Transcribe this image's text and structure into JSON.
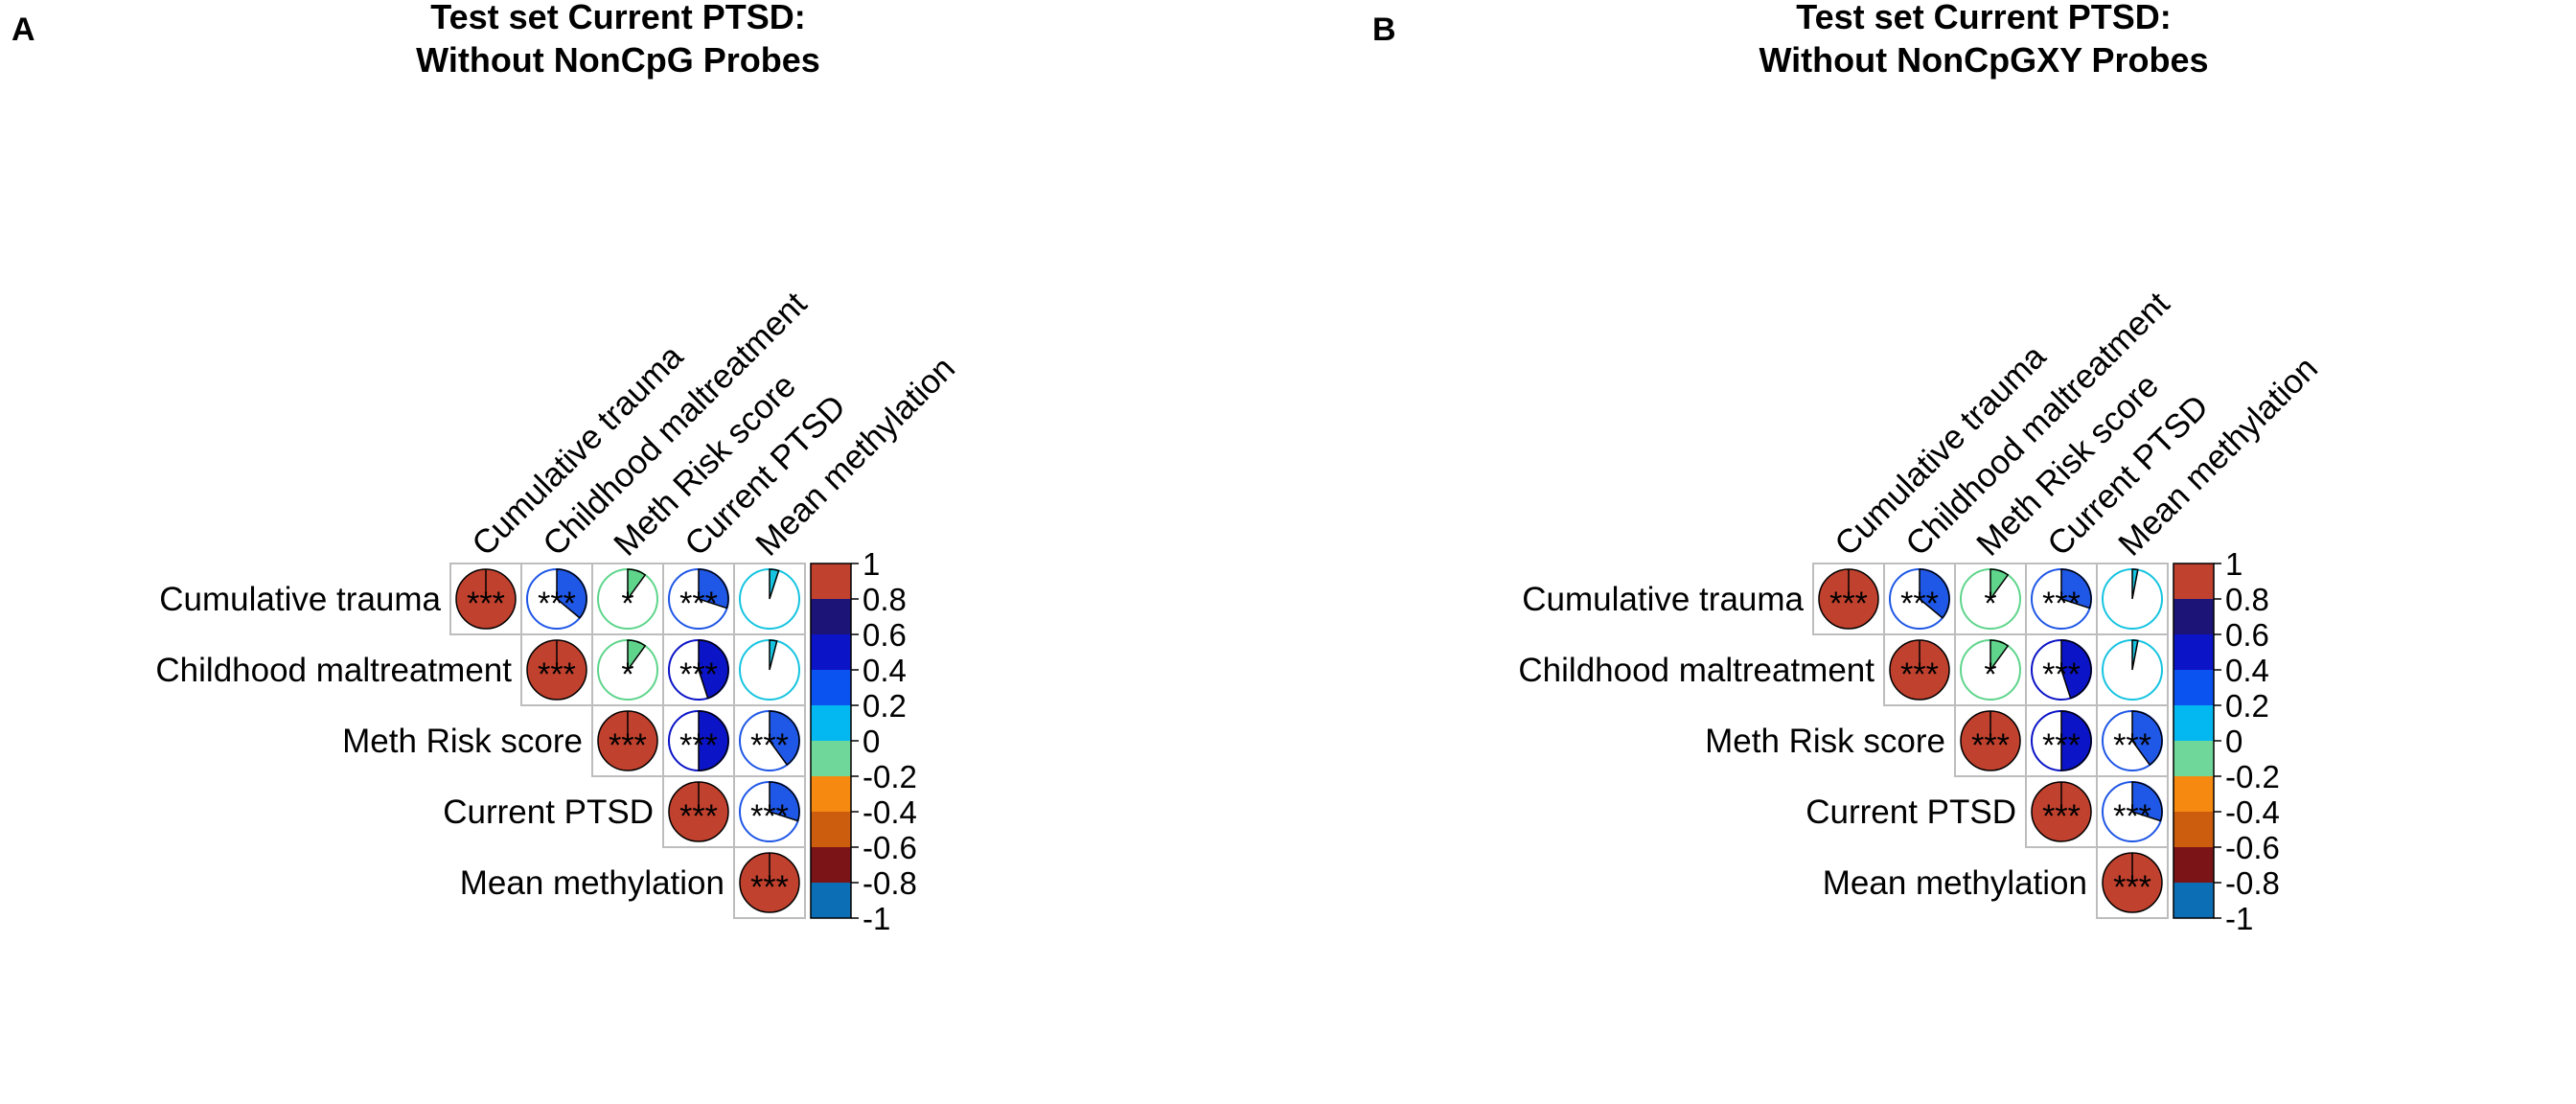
{
  "chart_data": [
    {
      "panel_label": "A",
      "type": "heatmap",
      "subtype": "correlation-pie-upper-triangle",
      "title_line1": "Test set Current PTSD:",
      "title_line2": "Without NonCpG Probes",
      "variables": [
        "Cumulative trauma",
        "Childhood maltreatment",
        "Meth Risk score",
        "Current PTSD",
        "Mean methylation"
      ],
      "cells": [
        {
          "row": 0,
          "col": 0,
          "r": 1.0,
          "sig": "***"
        },
        {
          "row": 0,
          "col": 1,
          "r": 0.36,
          "sig": "***"
        },
        {
          "row": 0,
          "col": 2,
          "r": 0.1,
          "sig": "*"
        },
        {
          "row": 0,
          "col": 3,
          "r": 0.3,
          "sig": "***"
        },
        {
          "row": 0,
          "col": 4,
          "r": 0.05,
          "sig": ""
        },
        {
          "row": 1,
          "col": 1,
          "r": 1.0,
          "sig": "***"
        },
        {
          "row": 1,
          "col": 2,
          "r": 0.1,
          "sig": "*"
        },
        {
          "row": 1,
          "col": 3,
          "r": 0.45,
          "sig": "***"
        },
        {
          "row": 1,
          "col": 4,
          "r": 0.04,
          "sig": ""
        },
        {
          "row": 2,
          "col": 2,
          "r": 1.0,
          "sig": "***"
        },
        {
          "row": 2,
          "col": 3,
          "r": 0.5,
          "sig": "***"
        },
        {
          "row": 2,
          "col": 4,
          "r": 0.4,
          "sig": "***"
        },
        {
          "row": 3,
          "col": 3,
          "r": 1.0,
          "sig": "***"
        },
        {
          "row": 3,
          "col": 4,
          "r": 0.3,
          "sig": "***"
        },
        {
          "row": 4,
          "col": 4,
          "r": 1.0,
          "sig": "***"
        }
      ]
    },
    {
      "panel_label": "B",
      "type": "heatmap",
      "subtype": "correlation-pie-upper-triangle",
      "title_line1": "Test set Current PTSD:",
      "title_line2": "Without NonCpGXY Probes",
      "variables": [
        "Cumulative trauma",
        "Childhood maltreatment",
        "Meth Risk score",
        "Current PTSD",
        "Mean methylation"
      ],
      "cells": [
        {
          "row": 0,
          "col": 0,
          "r": 1.0,
          "sig": "***"
        },
        {
          "row": 0,
          "col": 1,
          "r": 0.36,
          "sig": "***"
        },
        {
          "row": 0,
          "col": 2,
          "r": 0.1,
          "sig": "*"
        },
        {
          "row": 0,
          "col": 3,
          "r": 0.3,
          "sig": "***"
        },
        {
          "row": 0,
          "col": 4,
          "r": 0.03,
          "sig": ""
        },
        {
          "row": 1,
          "col": 1,
          "r": 1.0,
          "sig": "***"
        },
        {
          "row": 1,
          "col": 2,
          "r": 0.1,
          "sig": "*"
        },
        {
          "row": 1,
          "col": 3,
          "r": 0.45,
          "sig": "***"
        },
        {
          "row": 1,
          "col": 4,
          "r": 0.03,
          "sig": ""
        },
        {
          "row": 2,
          "col": 2,
          "r": 1.0,
          "sig": "***"
        },
        {
          "row": 2,
          "col": 3,
          "r": 0.5,
          "sig": "***"
        },
        {
          "row": 2,
          "col": 4,
          "r": 0.4,
          "sig": "***"
        },
        {
          "row": 3,
          "col": 3,
          "r": 1.0,
          "sig": "***"
        },
        {
          "row": 3,
          "col": 4,
          "r": 0.3,
          "sig": "***"
        },
        {
          "row": 4,
          "col": 4,
          "r": 1.0,
          "sig": "***"
        }
      ]
    }
  ],
  "colorbar": {
    "ticks": [
      "1",
      "0.8",
      "0.6",
      "0.4",
      "0.2",
      "0",
      "-0.2",
      "-0.4",
      "-0.6",
      "-0.8",
      "-1"
    ],
    "colors": [
      "#c0412e",
      "#1c1477",
      "#0b14c6",
      "#0a53f0",
      "#03b8f0",
      "#6fd79a",
      "#f68a10",
      "#cc5c0e",
      "#7a1416",
      "#0c6fb6"
    ]
  },
  "circle_colors": {
    "perfect": "#c0412e",
    "strong": "#0b14c6",
    "medium": "#1f57e6",
    "weak": "#5fd58c",
    "very_weak": "#17c4e0"
  }
}
